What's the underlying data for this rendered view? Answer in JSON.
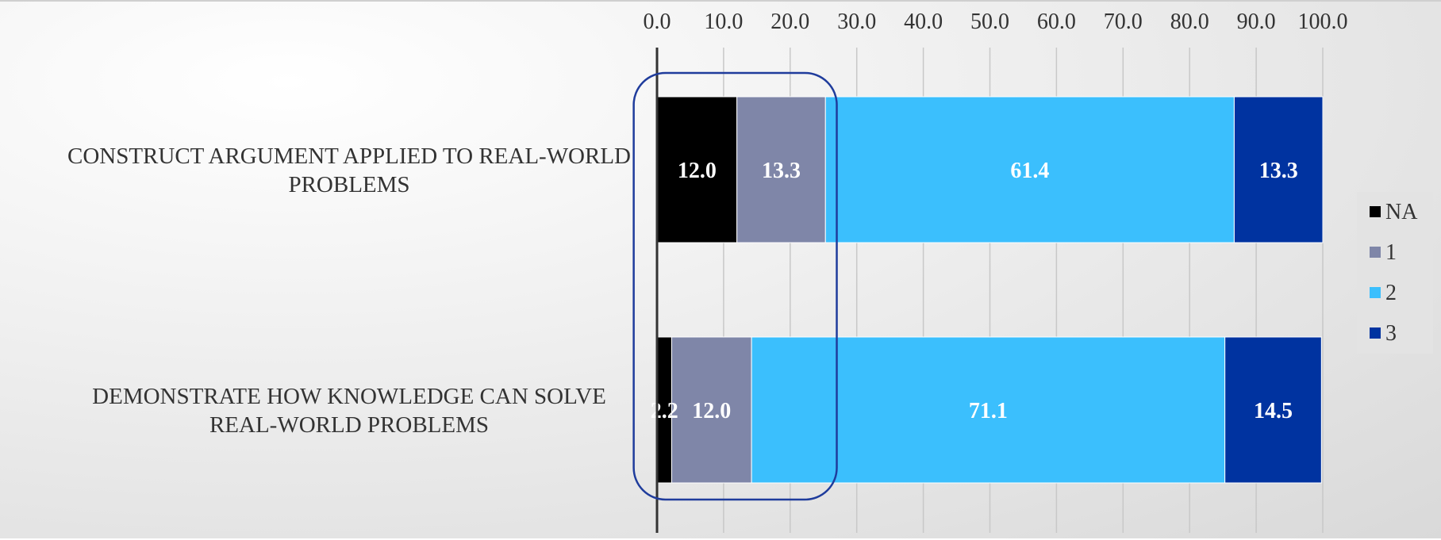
{
  "colors": {
    "NA": "#000000",
    "1": "#7f86a8",
    "2": "#3bbffd",
    "3": "#0033a0",
    "grid": "#c8c8c8",
    "axis": "#333333",
    "highlight": "#1f3c9c",
    "legend_bg": "#e3e3e3"
  },
  "chart_data": {
    "type": "bar",
    "orientation": "horizontal",
    "stacked": true,
    "title": "",
    "xlabel": "",
    "ylabel": "",
    "xlim": [
      0,
      100
    ],
    "x_ticks": [
      0,
      10,
      20,
      30,
      40,
      50,
      60,
      70,
      80,
      90,
      100
    ],
    "x_tick_labels": [
      "0.0",
      "10.0",
      "20.0",
      "30.0",
      "40.0",
      "50.0",
      "60.0",
      "70.0",
      "80.0",
      "90.0",
      "100.0"
    ],
    "x_axis_position": "top",
    "grid": true,
    "legend_position": "right",
    "categories": [
      [
        "CONSTRUCT ARGUMENT APPLIED TO REAL-WORLD",
        "PROBLEMS"
      ],
      [
        "DEMONSTRATE HOW KNOWLEDGE CAN SOLVE",
        "REAL-WORLD PROBLEMS"
      ]
    ],
    "series": [
      {
        "name": "NA",
        "values": [
          12.0,
          2.2
        ],
        "labels": [
          "12.0",
          "2.2"
        ]
      },
      {
        "name": "1",
        "values": [
          13.3,
          12.0
        ],
        "labels": [
          "13.3",
          "12.0"
        ]
      },
      {
        "name": "2",
        "values": [
          61.4,
          71.1
        ],
        "labels": [
          "61.4",
          "71.1"
        ]
      },
      {
        "name": "3",
        "values": [
          13.3,
          14.5
        ],
        "labels": [
          "13.3",
          "14.5"
        ]
      }
    ],
    "annotations": [
      {
        "type": "rounded-rectangle-highlight",
        "x_range": [
          -3.5,
          27
        ],
        "covers": "NA and 1 segments of both bars"
      }
    ]
  }
}
